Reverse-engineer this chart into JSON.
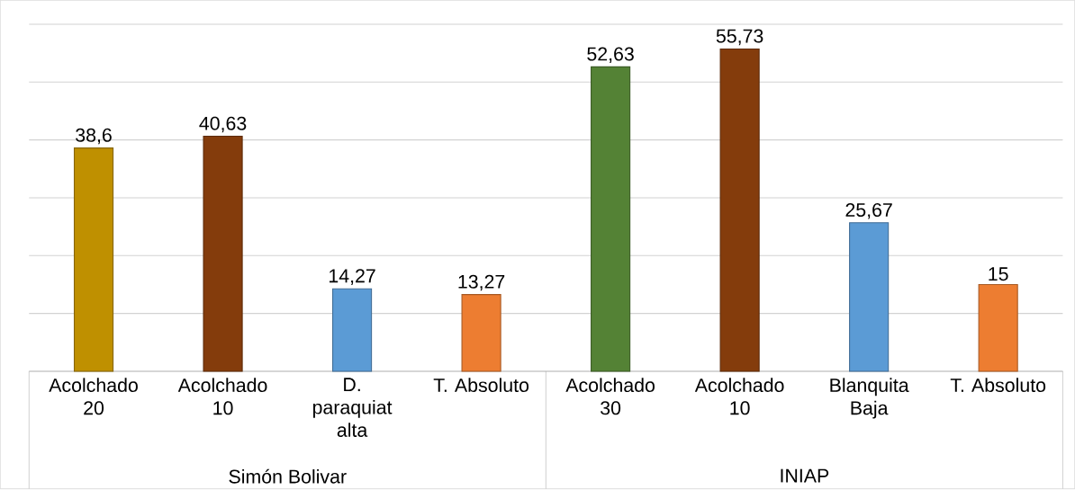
{
  "chart_data": {
    "type": "bar",
    "categories": [
      "Acolchado 20",
      "Acolchado 10",
      "D. paraquiat alta",
      "T. Absoluto",
      "Acolchado 30",
      "Acolchado 10",
      "Blanquita Baja",
      "T. Absoluto"
    ],
    "values": [
      38.6,
      40.63,
      14.27,
      13.27,
      52.63,
      55.73,
      25.67,
      15
    ],
    "value_labels": [
      "38,6",
      "40,63",
      "14,27",
      "13,27",
      "52,63",
      "55,73",
      "25,67",
      "15"
    ],
    "colors": [
      "#bf9000",
      "#843c0c",
      "#5b9bd5",
      "#ed7d31",
      "#548235",
      "#843c0c",
      "#5b9bd5",
      "#ed7d31"
    ],
    "yticks": [
      {
        "value": 0,
        "label": null
      },
      {
        "value": 10,
        "label": null
      },
      {
        "value": 20,
        "label": null
      },
      {
        "value": 30,
        "label": null
      },
      {
        "value": 40,
        "label": null
      },
      {
        "value": 50,
        "label": null
      },
      {
        "value": 60,
        "label": null
      }
    ],
    "tick_labels": "x",
    "grid": "y",
    "annotations": [
      "Simón Bolivar",
      "INIAP"
    ]
  }
}
